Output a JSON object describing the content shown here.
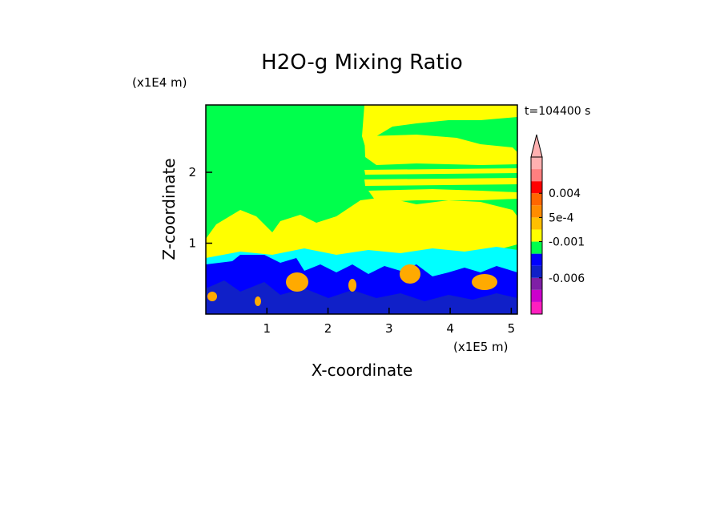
{
  "chart_data": {
    "type": "heatmap",
    "title": "H2O-g Mixing Ratio",
    "xlabel": "X-coordinate",
    "ylabel": "Z-coordinate",
    "x_unit": "(x1E5 m)",
    "y_unit": "(x1E4 m)",
    "time_label": "t=104400 s",
    "xlim": [
      0,
      5.1
    ],
    "ylim": [
      0,
      2.95
    ],
    "x_ticks": [
      "1",
      "2",
      "3",
      "4",
      "5"
    ],
    "y_ticks": [
      "1",
      "2"
    ],
    "colorbar": {
      "colors": [
        "#ff1fbf",
        "#cc00cc",
        "#7f1fa6",
        "#1020c8",
        "#0000ff",
        "#00ff4c",
        "#ffff00",
        "#ffbf00",
        "#ff8c00",
        "#ff6600",
        "#ff0000",
        "#ff7f7f",
        "#ffb0b0"
      ],
      "labels": [
        "0.004",
        "5e-4",
        "-0.001",
        "-0.006"
      ],
      "extend_top": true
    },
    "field_colors": {
      "background": "#00ff4c",
      "moist": "#ffff00",
      "cyan": "#00ffff",
      "blue": "#0000ff",
      "dark_blue": "#1020c8",
      "orange": "#ffaa00"
    }
  }
}
